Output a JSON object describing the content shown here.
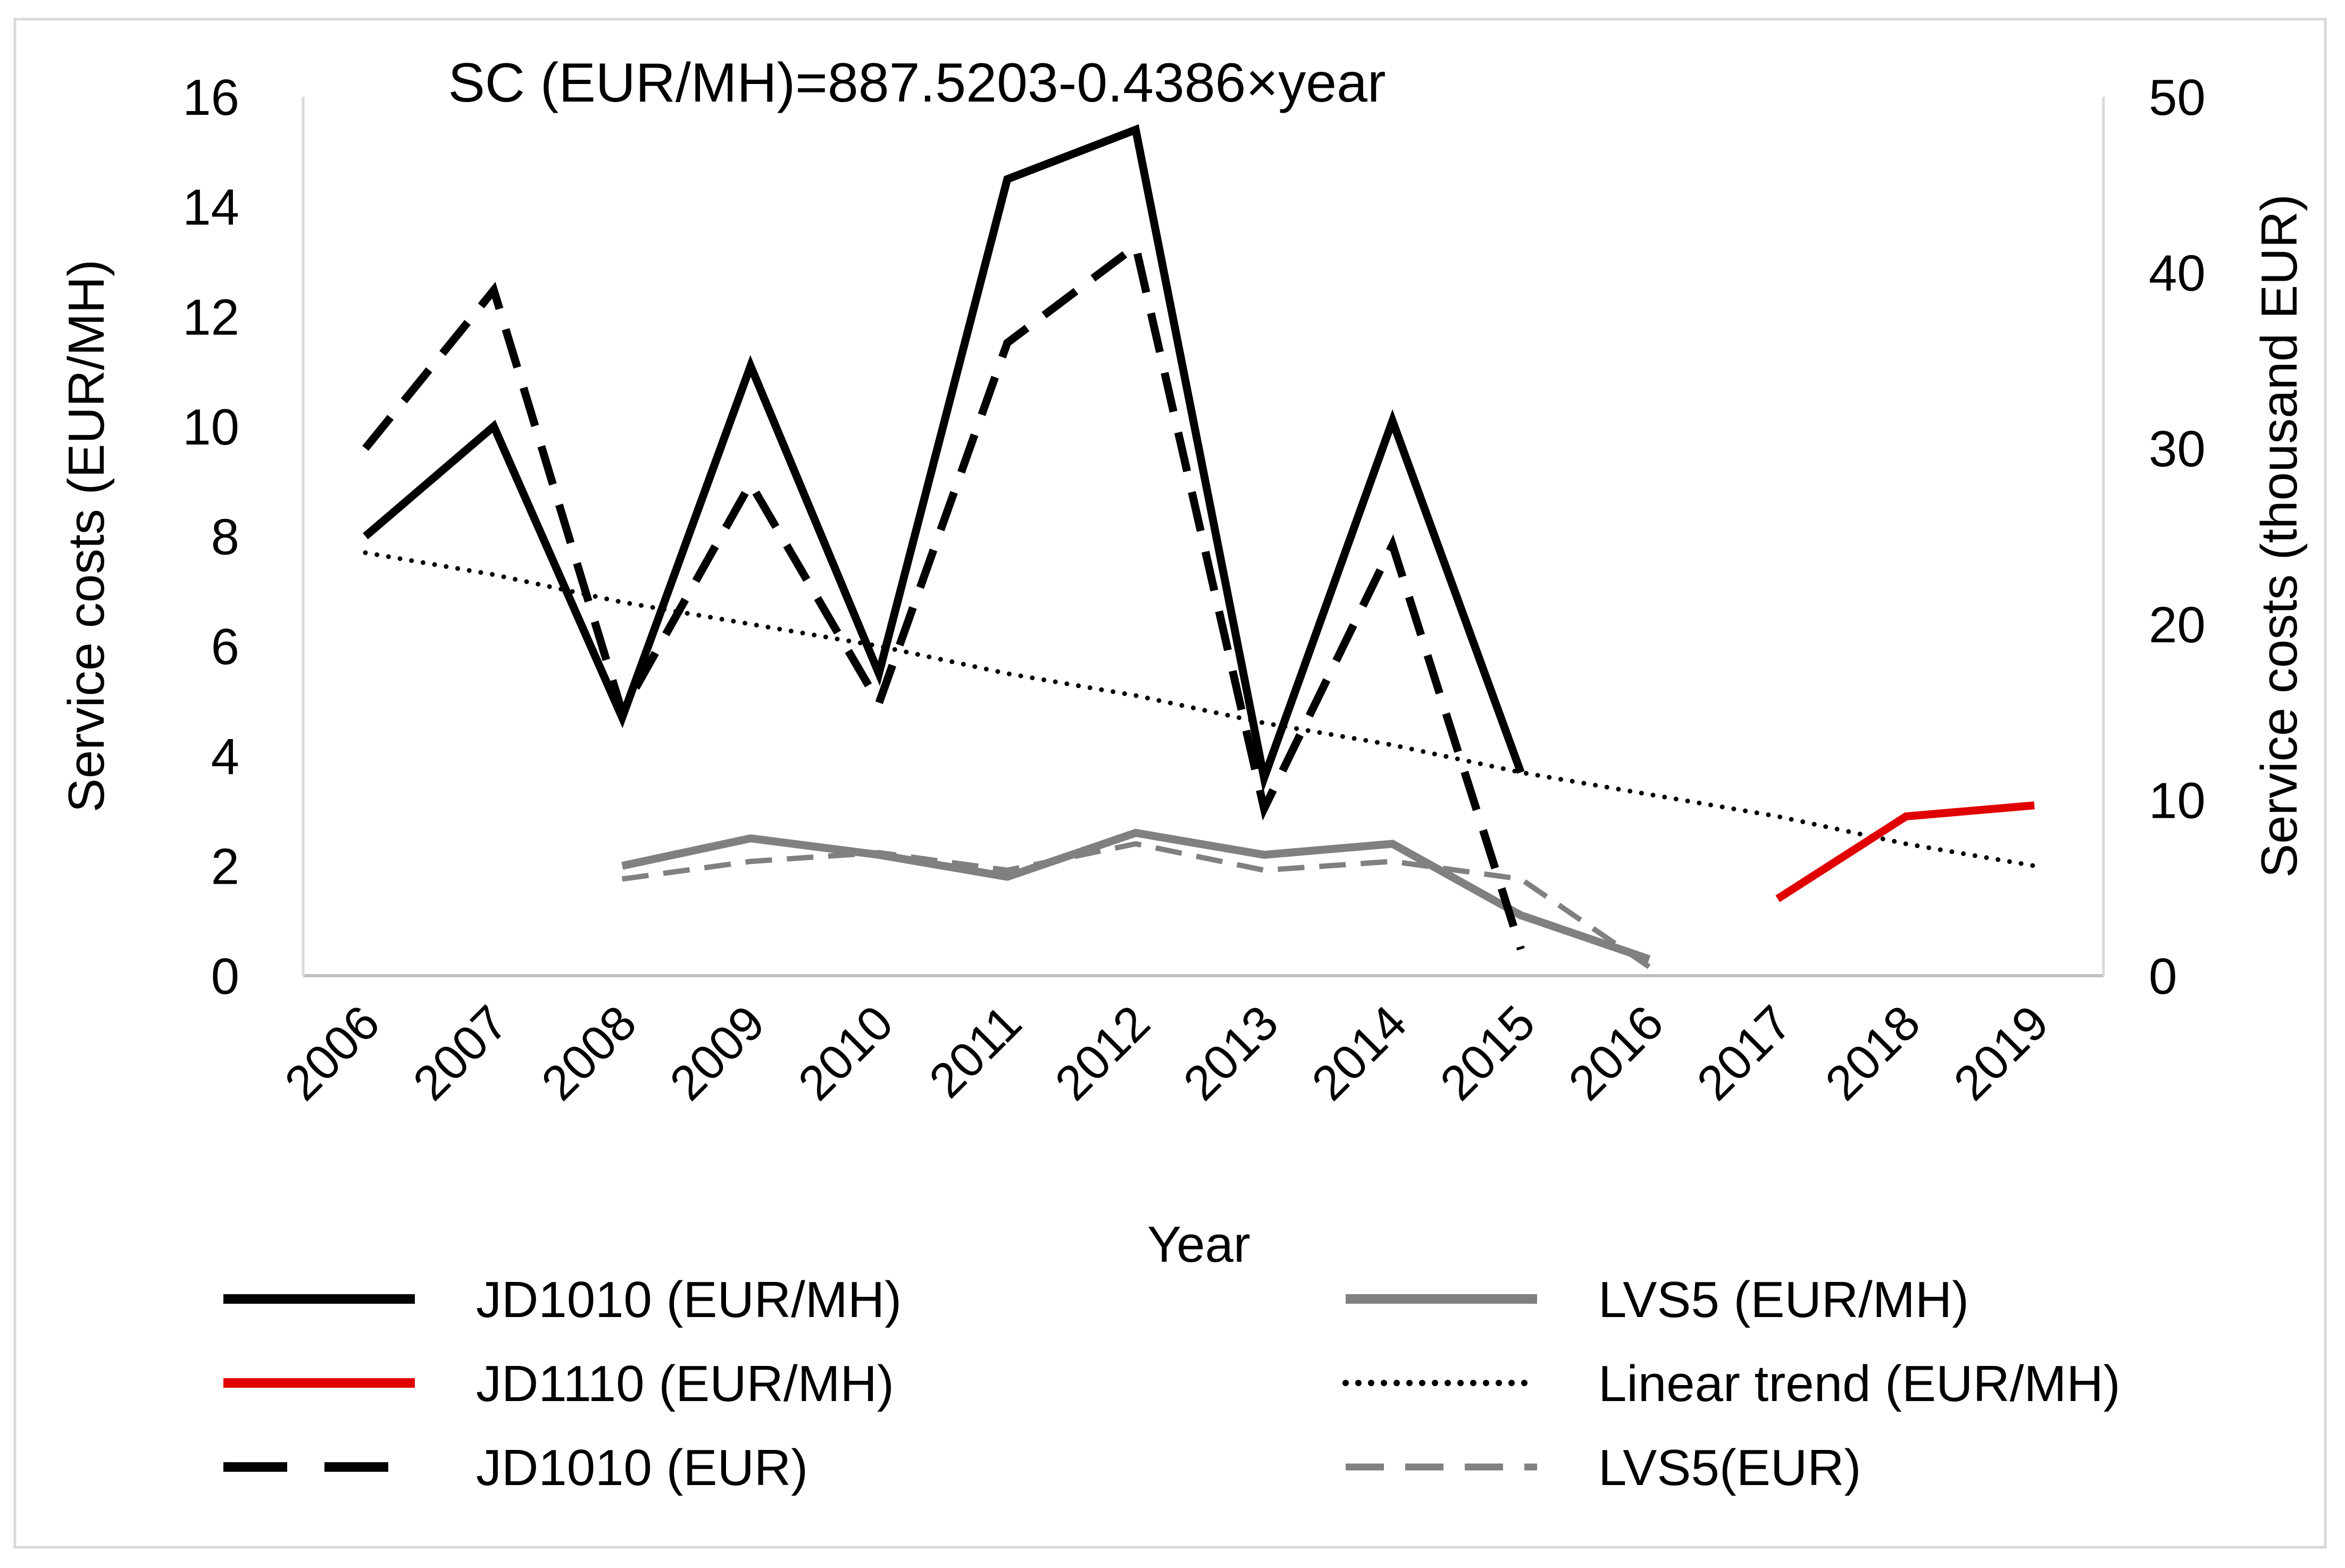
{
  "chart_data": {
    "type": "line",
    "title": "SC (EUR/MH)=887.5203-0.4386×year",
    "xlabel": "Year",
    "ylabel": "Service costs (EUR/MH)",
    "y2label": "Service costs (thousand EUR)",
    "ylim": [
      0,
      16
    ],
    "y2lim": [
      0,
      50
    ],
    "yticks": [
      0,
      2,
      4,
      6,
      8,
      10,
      12,
      14,
      16
    ],
    "y2ticks": [
      0,
      10,
      20,
      30,
      40,
      50
    ],
    "categories": [
      "2006",
      "2007",
      "2008",
      "2009",
      "2010",
      "2011",
      "2012",
      "2013",
      "2014",
      "2015",
      "2016",
      "2017",
      "2018",
      "2019"
    ],
    "legend_position": "bottom",
    "grid": false,
    "series": [
      {
        "name": "JD1010 (EUR/MH)",
        "axis": "left",
        "color": "#000000",
        "style": "solid",
        "values": [
          8.0,
          10.0,
          4.7,
          11.1,
          5.5,
          14.5,
          15.4,
          3.6,
          10.1,
          3.7,
          null,
          null,
          null,
          null
        ]
      },
      {
        "name": "LVS5 (EUR/MH)",
        "axis": "left",
        "color": "#808080",
        "style": "solid",
        "values": [
          null,
          null,
          2.0,
          2.5,
          2.2,
          1.8,
          2.6,
          2.2,
          2.4,
          1.1,
          0.3,
          null,
          null,
          null
        ]
      },
      {
        "name": "JD1110 (EUR/MH)",
        "axis": "left",
        "color": "#e00000",
        "style": "solid",
        "values": [
          null,
          null,
          null,
          null,
          null,
          null,
          null,
          null,
          null,
          null,
          null,
          1.4,
          2.9,
          3.1
        ]
      },
      {
        "name": "Linear trend (EUR/MH)",
        "axis": "left",
        "color": "#000000",
        "style": "dotted",
        "values": [
          7.7,
          7.3,
          6.8,
          6.4,
          6.0,
          5.5,
          5.1,
          4.6,
          4.2,
          3.7,
          3.3,
          2.9,
          2.4,
          2.0
        ]
      },
      {
        "name": "JD1010 (EUR)",
        "axis": "right",
        "color": "#000000",
        "style": "dashed",
        "values": [
          30,
          39,
          15,
          28,
          15.5,
          36,
          41.5,
          9.5,
          24.5,
          1.5,
          null,
          null,
          null,
          null
        ]
      },
      {
        "name": "LVS5(EUR)",
        "axis": "right",
        "color": "#808080",
        "style": "dashed-thin",
        "values": [
          null,
          null,
          5.5,
          6.5,
          7.0,
          6.0,
          7.5,
          6.0,
          6.5,
          5.5,
          0.5,
          null,
          null,
          null
        ]
      }
    ]
  }
}
